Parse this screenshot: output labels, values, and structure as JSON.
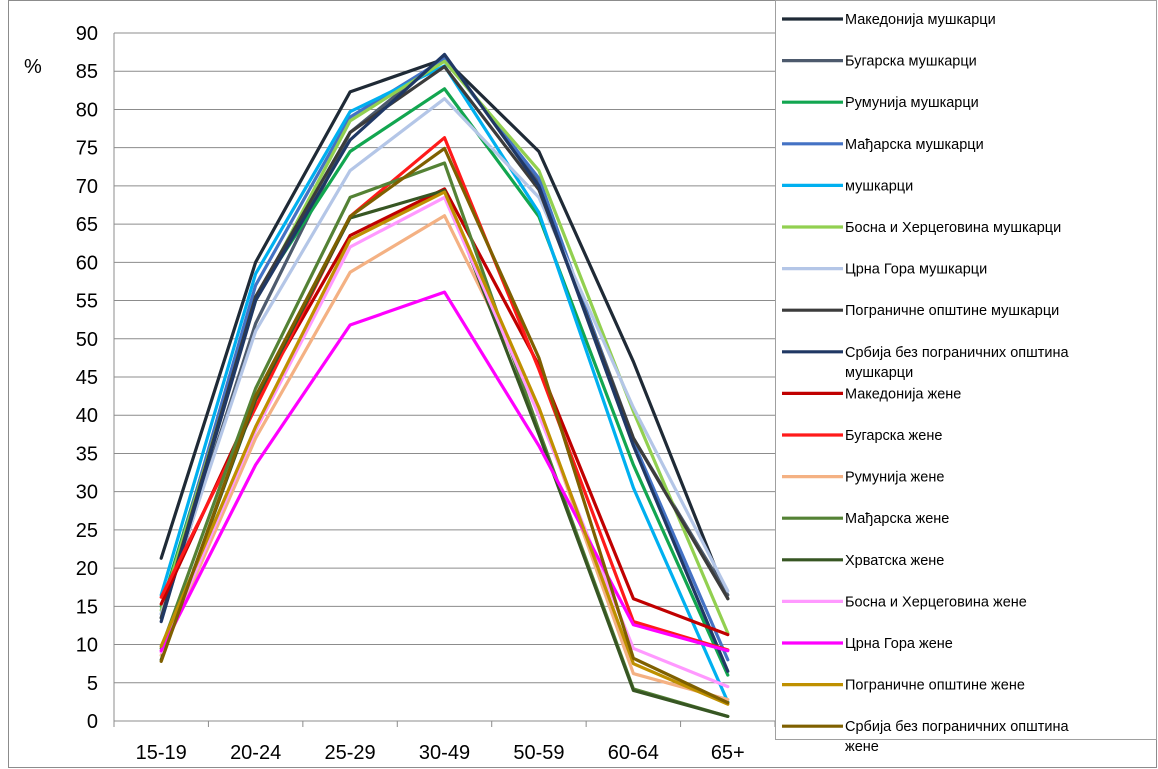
{
  "chart_data": {
    "type": "line",
    "title": "",
    "xlabel": "",
    "ylabel": "%",
    "ylim": [
      0,
      90
    ],
    "yticks": [
      0,
      5,
      10,
      15,
      20,
      25,
      30,
      35,
      40,
      45,
      50,
      55,
      60,
      65,
      70,
      75,
      80,
      85,
      90
    ],
    "grid": "horizontal",
    "legend_position": "right",
    "categories": [
      "15-19",
      "20-24",
      "25-29",
      "30-49",
      "50-59",
      "60-64",
      "65+"
    ],
    "series": [
      {
        "name": "Македонија мушкарци",
        "color": "#1f2a36",
        "values": [
          21.3,
          60.0,
          82.3,
          86.6,
          74.5,
          47.0,
          16.0
        ]
      },
      {
        "name": "Бугарска мушкарци",
        "color": "#4d5a6d",
        "values": [
          13.5,
          52.0,
          77.0,
          87.0,
          70.5,
          37.0,
          16.5
        ]
      },
      {
        "name": "Румунија мушкарци",
        "color": "#12a650",
        "values": [
          15.0,
          55.5,
          74.5,
          82.7,
          66.0,
          33.5,
          6.0
        ]
      },
      {
        "name": "Мађарска мушкарци",
        "color": "#4472c4",
        "values": [
          14.0,
          57.0,
          79.0,
          86.6,
          71.0,
          36.5,
          8.0
        ]
      },
      {
        "name": " мушкарци",
        "color": "#00b0f0",
        "values": [
          16.5,
          58.5,
          79.7,
          85.7,
          66.5,
          30.5,
          2.5
        ]
      },
      {
        "name": "Босна и Херцеговина мушкарци",
        "color": "#92d050",
        "values": [
          14.5,
          55.0,
          78.5,
          86.3,
          72.0,
          40.5,
          11.5
        ]
      },
      {
        "name": "Црна Гора мушкарци",
        "color": "#b4c6e7",
        "values": [
          14.0,
          51.0,
          72.0,
          81.4,
          68.5,
          41.0,
          17.0
        ]
      },
      {
        "name": "Пограничне општине мушкарци",
        "color": "#3c3c3c",
        "values": [
          13.5,
          55.5,
          77.0,
          85.6,
          69.5,
          37.0,
          16.0
        ]
      },
      {
        "name": "Србија без пограничних општина мушкарци",
        "color": "#203864",
        "values": [
          13.0,
          55.0,
          76.0,
          87.2,
          70.0,
          36.0,
          6.5
        ]
      },
      {
        "name": "Македонија жене",
        "color": "#c00000",
        "values": [
          15.3,
          42.0,
          63.5,
          69.6,
          46.5,
          16.0,
          11.3
        ]
      },
      {
        "name": "Бугарска жене",
        "color": "#ff1a1a",
        "values": [
          16.2,
          41.0,
          66.0,
          76.3,
          46.0,
          13.0,
          9.3
        ]
      },
      {
        "name": "Румунија жене",
        "color": "#f4b183",
        "values": [
          8.6,
          37.0,
          58.7,
          66.1,
          41.0,
          6.2,
          2.8
        ]
      },
      {
        "name": "Мађарска жене",
        "color": "#548235",
        "values": [
          9.5,
          43.5,
          68.5,
          73.0,
          38.0,
          4.2,
          0.6
        ]
      },
      {
        "name": "Хрватска жене",
        "color": "#375623",
        "values": [
          8.0,
          42.0,
          65.8,
          69.4,
          37.5,
          4.0,
          0.6
        ]
      },
      {
        "name": "Босна и Херцеговина жене",
        "color": "#ff99ff",
        "values": [
          9.0,
          38.0,
          62.0,
          68.5,
          40.0,
          9.5,
          4.5
        ]
      },
      {
        "name": "Црна Гора жене",
        "color": "#ff00ff",
        "values": [
          9.2,
          33.5,
          51.8,
          56.1,
          36.0,
          12.6,
          9.2
        ]
      },
      {
        "name": "Пограничне општине жене",
        "color": "#bf9000",
        "values": [
          9.8,
          38.5,
          63.0,
          69.2,
          41.0,
          7.5,
          2.2
        ]
      },
      {
        "name": "Србија без пограничних општина жене",
        "color": "#7f6000",
        "values": [
          7.8,
          42.5,
          66.0,
          74.9,
          47.5,
          8.2,
          2.4
        ]
      }
    ]
  }
}
